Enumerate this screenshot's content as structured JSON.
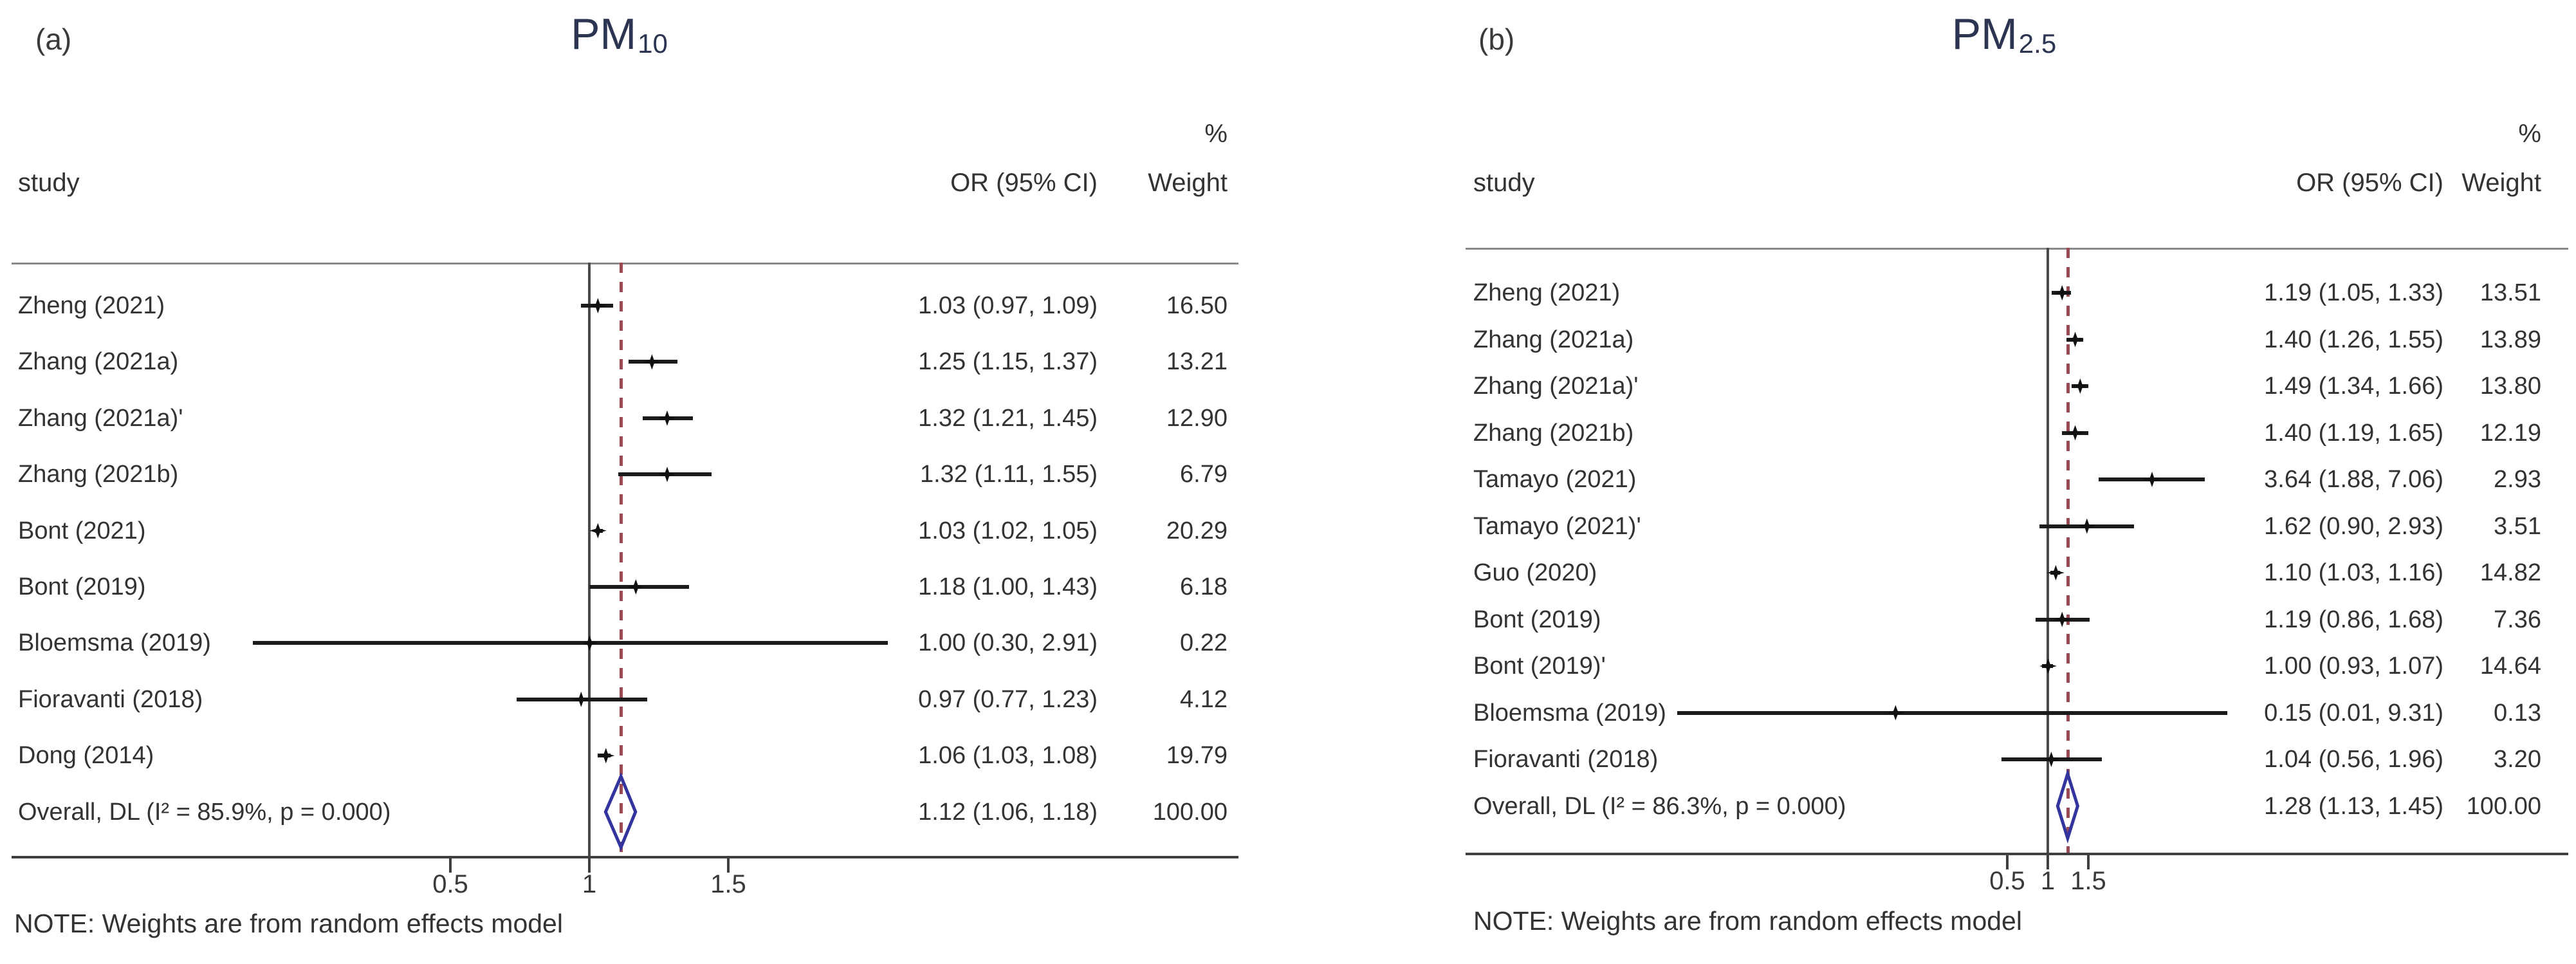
{
  "figure": {
    "note_text": "NOTE: Weights are from random effects model",
    "colors": {
      "title": "#2b3450",
      "text": "#333333",
      "null_line": "#4a4a4a",
      "overall_dashed_line": "#9b4a54",
      "overall_diamond_outline": "#34349e",
      "ci_line": "#1b1b1b",
      "axis_line": "#3f3f3f",
      "header_rule": "#8a8a8a"
    },
    "panels": [
      {
        "panel_label": "(a)",
        "title_main": "PM",
        "title_sub": "10",
        "col_headers": {
          "study": "study",
          "or": "OR (95% CI)",
          "pct": "%",
          "weight": "Weight"
        },
        "note": "NOTE: Weights are from random effects model"
      },
      {
        "panel_label": "(b)",
        "title_main": "PM",
        "title_sub": "2.5",
        "col_headers": {
          "study": "study",
          "or": "OR (95% CI)",
          "pct": "%",
          "weight": "Weight"
        },
        "note": "NOTE: Weights are from random effects model"
      }
    ]
  },
  "chart_data": [
    {
      "type": "forest",
      "title": "PM10",
      "effect_measure": "OR (95% CI)",
      "x_scale": "log",
      "x_ticks": [
        0.5,
        1,
        1.5
      ],
      "null_value": 1,
      "legend_position": "none",
      "grid": false,
      "studies": [
        {
          "label": "Zheng (2021)",
          "or": 1.03,
          "lo": 0.97,
          "hi": 1.09,
          "weight": 16.5
        },
        {
          "label": "Zhang (2021a)",
          "or": 1.25,
          "lo": 1.15,
          "hi": 1.37,
          "weight": 13.21
        },
        {
          "label": "Zhang (2021a)'",
          "or": 1.32,
          "lo": 1.21,
          "hi": 1.45,
          "weight": 12.9
        },
        {
          "label": "Zhang (2021b)",
          "or": 1.32,
          "lo": 1.11,
          "hi": 1.55,
          "weight": 6.79
        },
        {
          "label": "Bont (2021)",
          "or": 1.03,
          "lo": 1.02,
          "hi": 1.05,
          "weight": 20.29
        },
        {
          "label": "Bont (2019)",
          "or": 1.18,
          "lo": 1.0,
          "hi": 1.43,
          "weight": 6.18
        },
        {
          "label": "Bloemsma (2019)",
          "or": 1.0,
          "lo": 0.3,
          "hi": 2.91,
          "weight": 0.22
        },
        {
          "label": "Fioravanti (2018)",
          "or": 0.97,
          "lo": 0.77,
          "hi": 1.23,
          "weight": 4.12
        },
        {
          "label": "Dong (2014)",
          "or": 1.06,
          "lo": 1.03,
          "hi": 1.08,
          "weight": 19.79
        }
      ],
      "overall": {
        "label": "Overall, DL (I² = 85.9%, p = 0.000)",
        "i_squared": "85.9%",
        "p_value": "0.000",
        "or": 1.12,
        "lo": 1.06,
        "hi": 1.18,
        "weight": 100.0
      }
    },
    {
      "type": "forest",
      "title": "PM2.5",
      "effect_measure": "OR (95% CI)",
      "x_scale": "log",
      "x_ticks": [
        0.5,
        1,
        1.5
      ],
      "null_value": 1,
      "legend_position": "none",
      "grid": false,
      "studies": [
        {
          "label": "Zheng (2021)",
          "or": 1.19,
          "lo": 1.05,
          "hi": 1.33,
          "weight": 13.51
        },
        {
          "label": "Zhang (2021a)",
          "or": 1.4,
          "lo": 1.26,
          "hi": 1.55,
          "weight": 13.89
        },
        {
          "label": "Zhang (2021a)'",
          "or": 1.49,
          "lo": 1.34,
          "hi": 1.66,
          "weight": 13.8
        },
        {
          "label": "Zhang (2021b)",
          "or": 1.4,
          "lo": 1.19,
          "hi": 1.65,
          "weight": 12.19
        },
        {
          "label": "Tamayo (2021)",
          "or": 3.64,
          "lo": 1.88,
          "hi": 7.06,
          "weight": 2.93
        },
        {
          "label": "Tamayo (2021)'",
          "or": 1.62,
          "lo": 0.9,
          "hi": 2.93,
          "weight": 3.51
        },
        {
          "label": "Guo (2020)",
          "or": 1.1,
          "lo": 1.03,
          "hi": 1.16,
          "weight": 14.82
        },
        {
          "label": "Bont (2019)",
          "or": 1.19,
          "lo": 0.86,
          "hi": 1.68,
          "weight": 7.36
        },
        {
          "label": "Bont (2019)'",
          "or": 1.0,
          "lo": 0.93,
          "hi": 1.07,
          "weight": 14.64
        },
        {
          "label": "Bloemsma (2019)",
          "or": 0.15,
          "lo": 0.01,
          "hi": 9.31,
          "weight": 0.13
        },
        {
          "label": "Fioravanti (2018)",
          "or": 1.04,
          "lo": 0.56,
          "hi": 1.96,
          "weight": 3.2
        }
      ],
      "overall": {
        "label": "Overall, DL (I² = 86.3%, p = 0.000)",
        "i_squared": "86.3%",
        "p_value": "0.000",
        "or": 1.28,
        "lo": 1.13,
        "hi": 1.45,
        "weight": 100.0
      }
    }
  ]
}
